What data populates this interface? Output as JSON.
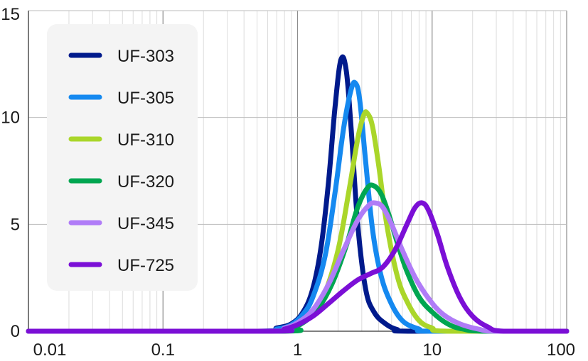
{
  "chart_data": {
    "type": "line",
    "title": "",
    "xlabel": "",
    "ylabel": "",
    "x_scale": "log",
    "xlim": [
      0.01,
      100
    ],
    "ylim": [
      0,
      15
    ],
    "x_ticks": [
      0.01,
      0.1,
      1,
      10,
      100
    ],
    "x_tick_labels": [
      "0.01",
      "0.1",
      "1",
      "10",
      "100"
    ],
    "y_ticks": [
      0,
      5,
      10,
      15
    ],
    "y_tick_labels": [
      "0",
      "5",
      "10",
      "15"
    ],
    "grid": true,
    "legend_position": "top-left",
    "series": [
      {
        "name": "UF-303",
        "color": "#001a8c",
        "x": [
          0.01,
          0.5,
          0.7,
          0.9,
          1.1,
          1.3,
          1.5,
          1.7,
          1.9,
          2.1,
          2.3,
          2.5,
          2.8,
          3.2,
          3.7,
          4.5,
          5.5,
          7,
          100
        ],
        "y": [
          0,
          0,
          0.15,
          0.35,
          0.9,
          2.0,
          4.0,
          7.0,
          10.5,
          12.7,
          12.2,
          9.5,
          5.0,
          2.0,
          0.9,
          0.35,
          0.08,
          0,
          0
        ]
      },
      {
        "name": "UF-305",
        "color": "#1589f0",
        "x": [
          0.01,
          0.5,
          0.7,
          0.9,
          1.1,
          1.3,
          1.6,
          1.9,
          2.2,
          2.5,
          2.7,
          2.9,
          3.2,
          3.6,
          4.1,
          4.8,
          6,
          8,
          10,
          100
        ],
        "y": [
          0,
          0,
          0.1,
          0.3,
          0.8,
          1.6,
          3.5,
          6.5,
          9.5,
          11.3,
          11.6,
          10.8,
          8.0,
          4.8,
          2.8,
          1.5,
          0.5,
          0.1,
          0,
          0
        ]
      },
      {
        "name": "UF-310",
        "color": "#aad62a",
        "x": [
          0.01,
          0.6,
          0.8,
          1.0,
          1.3,
          1.6,
          2.0,
          2.4,
          2.8,
          3.1,
          3.3,
          3.6,
          4.0,
          4.6,
          5.5,
          6.5,
          8,
          10,
          13,
          100
        ],
        "y": [
          0,
          0,
          0.1,
          0.3,
          0.8,
          1.8,
          3.8,
          6.5,
          9.0,
          10.1,
          10.2,
          9.6,
          7.8,
          5.0,
          2.6,
          1.4,
          0.5,
          0.15,
          0,
          0
        ]
      },
      {
        "name": "UF-320",
        "color": "#00a651",
        "x": [
          0.01,
          0.7,
          0.9,
          1.1,
          1.4,
          1.8,
          2.3,
          2.8,
          3.3,
          3.7,
          4.2,
          4.8,
          5.6,
          6.5,
          8,
          10,
          13,
          17,
          25,
          100
        ],
        "y": [
          0,
          0,
          0.15,
          0.4,
          1.0,
          2.2,
          4.0,
          5.8,
          6.7,
          6.8,
          6.4,
          5.4,
          4.0,
          2.8,
          1.6,
          0.9,
          0.35,
          0.1,
          0,
          0
        ]
      },
      {
        "name": "UF-345",
        "color": "#b07cf7",
        "x": [
          0.01,
          0.6,
          0.8,
          1.0,
          1.3,
          1.7,
          2.2,
          2.8,
          3.4,
          3.8,
          4.3,
          5.0,
          6.0,
          7.5,
          9.5,
          12,
          16,
          22,
          30,
          100
        ],
        "y": [
          0,
          0,
          0.15,
          0.4,
          1.0,
          2.2,
          3.8,
          5.2,
          5.9,
          6.0,
          5.8,
          5.0,
          3.8,
          2.5,
          1.5,
          0.8,
          0.35,
          0.1,
          0,
          0
        ]
      },
      {
        "name": "UF-725",
        "color": "#7b0fd6",
        "x": [
          0.01,
          0.6,
          0.8,
          1.0,
          1.3,
          1.7,
          2.2,
          2.8,
          3.5,
          4.3,
          5.3,
          6.5,
          7.5,
          8.5,
          9.5,
          11,
          13,
          16,
          20,
          26,
          34,
          100
        ],
        "y": [
          0,
          0,
          0.1,
          0.3,
          0.7,
          1.3,
          1.9,
          2.4,
          2.7,
          3.0,
          3.8,
          5.0,
          5.8,
          6.0,
          5.6,
          4.5,
          3.0,
          1.6,
          0.7,
          0.2,
          0,
          0
        ]
      }
    ]
  }
}
